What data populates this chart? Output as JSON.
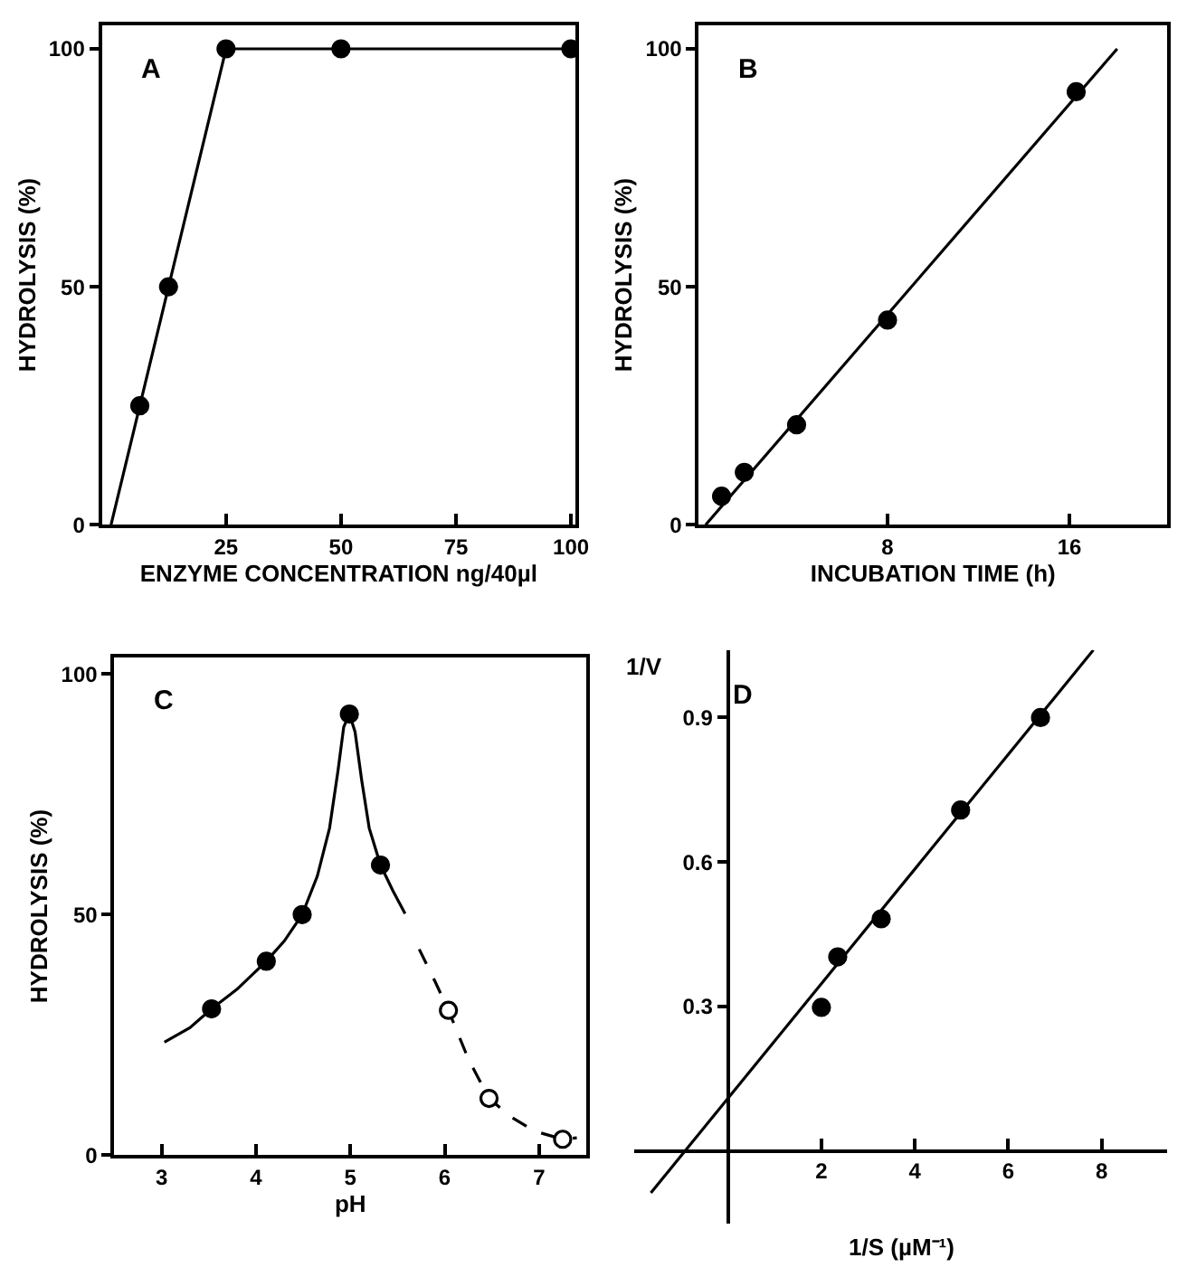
{
  "chart_data": [
    {
      "type": "line",
      "xlabel": "ENZYME CONCENTRATION ng/40µl",
      "ylabel": "HYDROLYSIS (%)",
      "annotations": [
        "A"
      ],
      "xlim": [
        -2,
        101
      ],
      "ylim": [
        0,
        105
      ],
      "xticks": [
        25,
        50,
        75,
        100
      ],
      "yticks": [
        0,
        50,
        100
      ],
      "series": [
        {
          "color": "#000000",
          "x": [
            0,
            6.25,
            12.5,
            25,
            50,
            100
          ],
          "values": [
            0,
            25,
            50,
            100,
            100,
            100
          ],
          "marker": "none",
          "line_style": "solid"
        },
        {
          "type": "scatter",
          "color": "#000000",
          "x": [
            6.25,
            12.5,
            25,
            50,
            100
          ],
          "values": [
            25,
            50,
            100,
            100,
            100
          ],
          "marker": "circle"
        }
      ]
    },
    {
      "type": "line",
      "xlabel": "INCUBATION TIME (h)",
      "ylabel": "HYDROLYSIS (%)",
      "annotations": [
        "B"
      ],
      "xlim": [
        -0.3,
        20.3
      ],
      "ylim": [
        0,
        105
      ],
      "xticks": [
        8,
        16
      ],
      "yticks": [
        0,
        50,
        100
      ],
      "series": [
        {
          "color": "#000000",
          "x": [
            0,
            18.1
          ],
          "values": [
            0,
            100
          ],
          "marker": "none",
          "line_style": "solid"
        },
        {
          "type": "scatter",
          "color": "#000000",
          "x": [
            0.7,
            1.7,
            4,
            8,
            16.3
          ],
          "values": [
            6,
            11,
            21,
            43,
            91
          ],
          "marker": "circle"
        }
      ]
    },
    {
      "type": "line",
      "xlabel": "pH",
      "ylabel": "HYDROLYSIS (%)",
      "annotations": [
        "C"
      ],
      "xlim": [
        2.5,
        7.5
      ],
      "ylim": [
        0,
        103.5
      ],
      "xticks": [
        3,
        4,
        5,
        6,
        7
      ],
      "yticks": [
        0,
        50,
        100
      ],
      "series": [
        {
          "color": "#000000",
          "x": [
            3.03,
            3.3,
            3.53,
            3.8,
            4.11,
            4.3,
            4.49,
            4.65,
            4.78,
            4.87,
            4.93,
            4.99,
            5.05,
            5.12,
            5.2,
            5.32,
            5.45,
            5.58
          ],
          "values": [
            23.5,
            26.5,
            30.4,
            34.5,
            40.3,
            44.5,
            50,
            58,
            68,
            80,
            89,
            91.7,
            88,
            78,
            68,
            60.3,
            55,
            50.2
          ],
          "marker": "none",
          "line_style": "solid"
        },
        {
          "color": "#000000",
          "x": [
            5.73,
            5.9,
            6.04,
            6.25,
            6.47,
            6.7,
            6.95,
            7.25,
            7.4
          ],
          "values": [
            42.8,
            36,
            30.1,
            20,
            11.8,
            8,
            5,
            3.3,
            3.6
          ],
          "marker": "none",
          "line_style": "dashed"
        },
        {
          "type": "scatter",
          "color": "#000000",
          "x": [
            3.53,
            4.11,
            4.49,
            4.99,
            5.32
          ],
          "values": [
            30.4,
            40.3,
            50,
            91.7,
            60.3
          ],
          "marker": "circle"
        },
        {
          "type": "scatter",
          "color": "#ffffff",
          "x": [
            6.04,
            6.47,
            7.25
          ],
          "values": [
            30.1,
            11.8,
            3.3
          ],
          "marker": "circle"
        }
      ]
    },
    {
      "type": "line",
      "xlabel": "1/S (µM⁻¹)",
      "ylabel": "1/V",
      "annotations": [
        "D"
      ],
      "xlim": [
        -2,
        9.4
      ],
      "ylim": [
        -0.15,
        1.04
      ],
      "xticks": [
        2,
        4,
        6,
        8
      ],
      "yticks": [
        0.3,
        0.6,
        0.9
      ],
      "series": [
        {
          "color": "#000000",
          "x": [
            -1.65,
            7.82
          ],
          "values": [
            -0.087,
            1.04
          ],
          "marker": "none",
          "line_style": "solid"
        },
        {
          "type": "scatter",
          "color": "#000000",
          "x": [
            2,
            2.35,
            3.28,
            4.98,
            6.69
          ],
          "values": [
            0.298,
            0.403,
            0.482,
            0.708,
            0.9
          ],
          "marker": "circle"
        }
      ]
    }
  ]
}
